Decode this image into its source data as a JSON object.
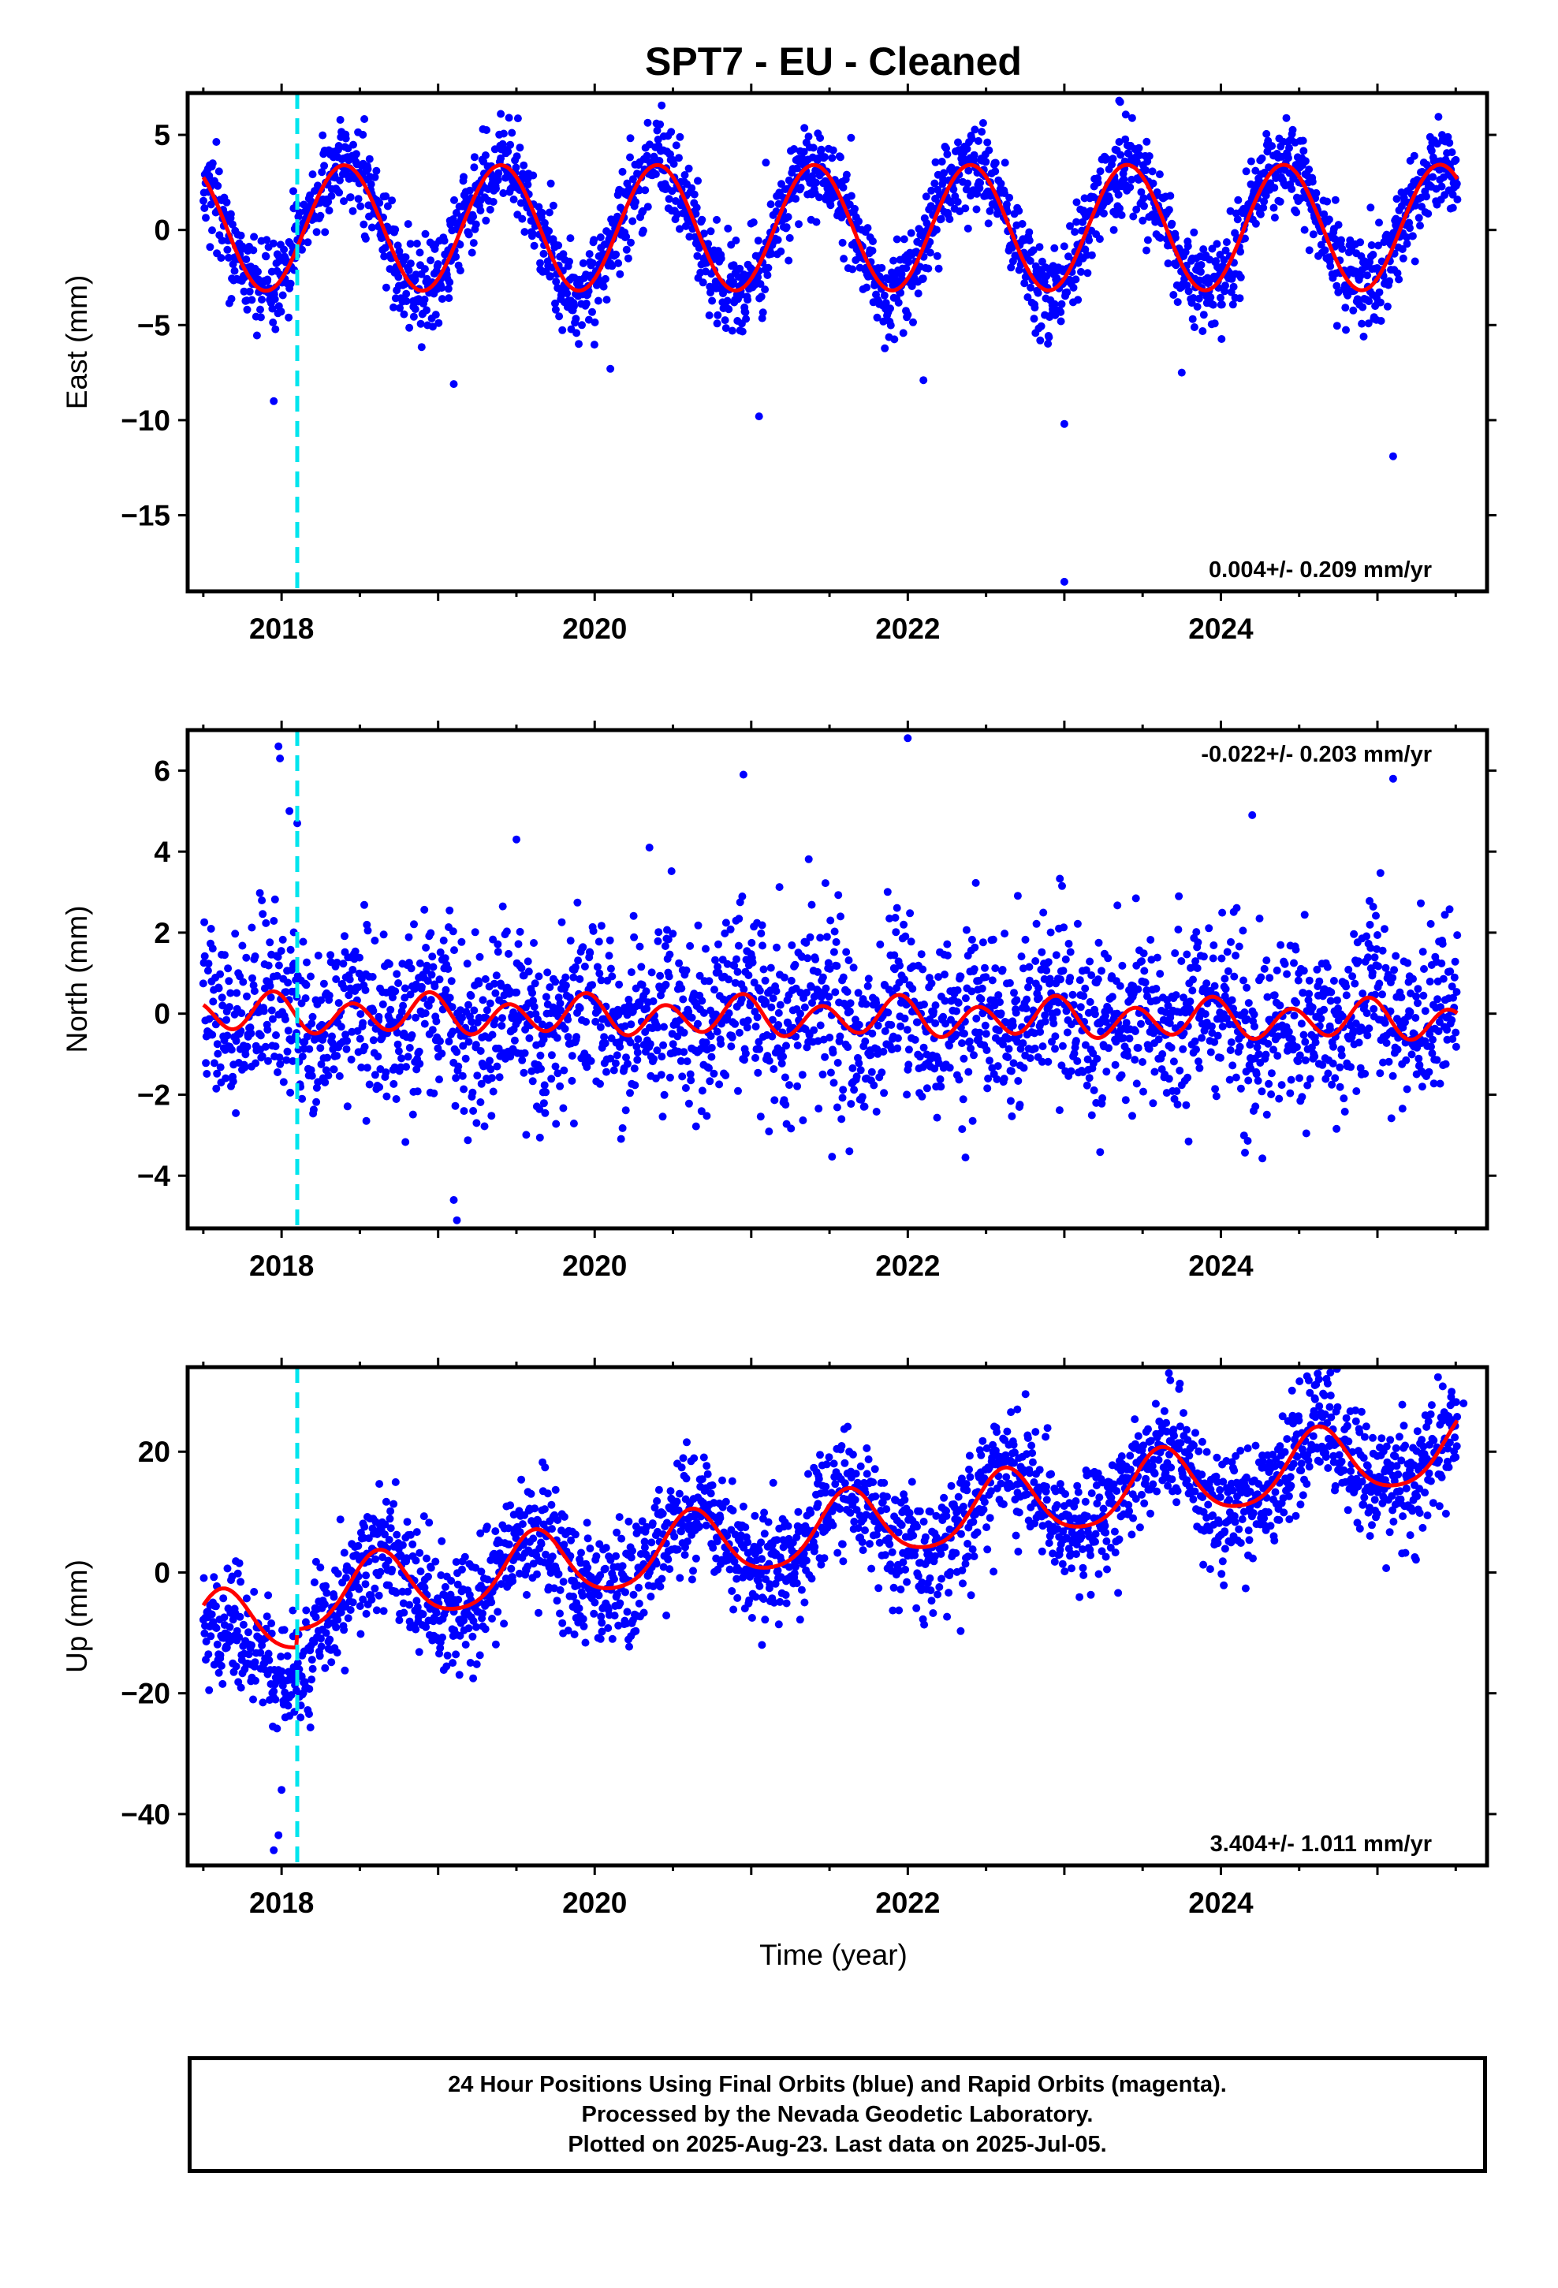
{
  "title": "SPT7  - EU - Cleaned",
  "colors": {
    "points": "#0000ff",
    "fit": "#ff0000",
    "event_line": "#00e5ee"
  },
  "chart_data": [
    {
      "type": "scatter",
      "name": "east",
      "ylabel": "East (mm)",
      "xlabel": "",
      "xlim": [
        2017.4,
        2025.7
      ],
      "ylim": [
        -19,
        7.2
      ],
      "xticks": [
        2018,
        2020,
        2022,
        2024
      ],
      "yticks": [
        5,
        0,
        -5,
        -10,
        -15
      ],
      "event_line_x": 2018.1,
      "rate_label": "0.004+/- 0.209 mm/yr",
      "rate_position": "bottom-right",
      "fit": {
        "offset": 0.1,
        "trend": 0.004,
        "annual_amp": 3.3,
        "annual_peak": 2018.4,
        "semi_amp": 0.0,
        "semi_peak": 2018.0
      },
      "scatter": {
        "noise_sd": 1.2,
        "point_count": 2400
      },
      "outliers": [
        [
          2017.95,
          -9.0
        ],
        [
          2019.1,
          -8.1
        ],
        [
          2021.05,
          -9.8
        ],
        [
          2022.1,
          -7.9
        ],
        [
          2023.0,
          -10.2
        ],
        [
          2023.0,
          -18.5
        ],
        [
          2023.75,
          -7.5
        ],
        [
          2025.1,
          -11.9
        ],
        [
          2020.1,
          -7.3
        ],
        [
          2019.4,
          6.1
        ],
        [
          2023.35,
          6.8
        ]
      ]
    },
    {
      "type": "scatter",
      "name": "north",
      "ylabel": "North (mm)",
      "xlabel": "",
      "xlim": [
        2017.4,
        2025.7
      ],
      "ylim": [
        -5.3,
        7.0
      ],
      "xticks": [
        2018,
        2020,
        2022,
        2024
      ],
      "yticks": [
        6,
        4,
        2,
        0,
        -2,
        -4
      ],
      "event_line_x": 2018.1,
      "rate_label": "-0.022+/- 0.203 mm/yr",
      "rate_position": "top-right",
      "fit": {
        "offset": 0.0,
        "trend": -0.022,
        "annual_amp": 0.15,
        "annual_peak": 2017.9,
        "semi_amp": 0.42,
        "semi_peak": 2017.95
      },
      "scatter": {
        "noise_sd": 1.1,
        "point_count": 2400
      },
      "outliers": [
        [
          2017.98,
          6.6
        ],
        [
          2017.99,
          6.3
        ],
        [
          2018.05,
          5.0
        ],
        [
          2018.1,
          4.7
        ],
        [
          2019.12,
          -5.1
        ],
        [
          2019.1,
          -4.6
        ],
        [
          2020.95,
          5.9
        ],
        [
          2022.0,
          6.8
        ],
        [
          2024.2,
          4.9
        ],
        [
          2025.1,
          5.8
        ],
        [
          2019.5,
          4.3
        ],
        [
          2020.35,
          4.1
        ]
      ]
    },
    {
      "type": "scatter",
      "name": "up",
      "ylabel": "Up (mm)",
      "xlabel": "Time (year)",
      "xlim": [
        2017.4,
        2025.7
      ],
      "ylim": [
        -48.5,
        34
      ],
      "xticks": [
        2018,
        2020,
        2022,
        2024
      ],
      "yticks": [
        20,
        0,
        -20,
        -40
      ],
      "event_line_x": 2018.1,
      "rate_label": "3.404+/- 1.011 mm/yr",
      "rate_position": "bottom-right",
      "fit": {
        "offset": -10.0,
        "trend": 3.404,
        "annual_amp": 5.7,
        "annual_peak": 2018.62,
        "semi_amp": 0.9,
        "semi_peak": 2018.62,
        "step_at": 2018.1,
        "step": 3.0
      },
      "scatter": {
        "noise_sd": 4.8,
        "point_count": 2400
      },
      "outliers": [
        [
          2017.95,
          -46.0
        ],
        [
          2017.98,
          -43.5
        ],
        [
          2018.0,
          -36.0
        ],
        [
          2024.55,
          32.5
        ],
        [
          2024.6,
          31.0
        ],
        [
          2022.7,
          27.0
        ],
        [
          2025.55,
          28.0
        ]
      ]
    }
  ],
  "footer": {
    "line1": "24 Hour Positions Using Final Orbits (blue) and Rapid Orbits (magenta).",
    "line2": "Processed by the Nevada Geodetic Laboratory.",
    "line3": "Plotted on 2025-Aug-23. Last data on 2025-Jul-05."
  }
}
